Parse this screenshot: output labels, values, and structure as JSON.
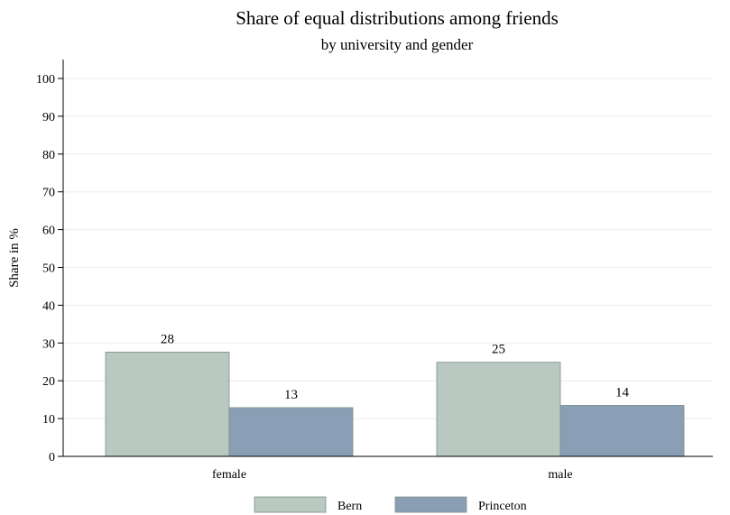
{
  "chart_data": {
    "type": "bar",
    "title": "Share of equal distributions among friends",
    "subtitle": "by university and gender",
    "xlabel": "",
    "ylabel": "Share in %",
    "categories": [
      "female",
      "male"
    ],
    "series": [
      {
        "name": "Bern",
        "values": [
          27.6,
          24.9
        ],
        "labels": [
          "28",
          "25"
        ],
        "color": "#b9c8c1"
      },
      {
        "name": "Princeton",
        "values": [
          12.9,
          13.5
        ],
        "labels": [
          "13",
          "14"
        ],
        "color": "#8a9fb6"
      }
    ],
    "ylim": [
      0,
      100
    ],
    "yticks": [
      0,
      10,
      20,
      30,
      40,
      50,
      60,
      70,
      80,
      90,
      100
    ],
    "grid": true,
    "legend_position": "bottom"
  }
}
